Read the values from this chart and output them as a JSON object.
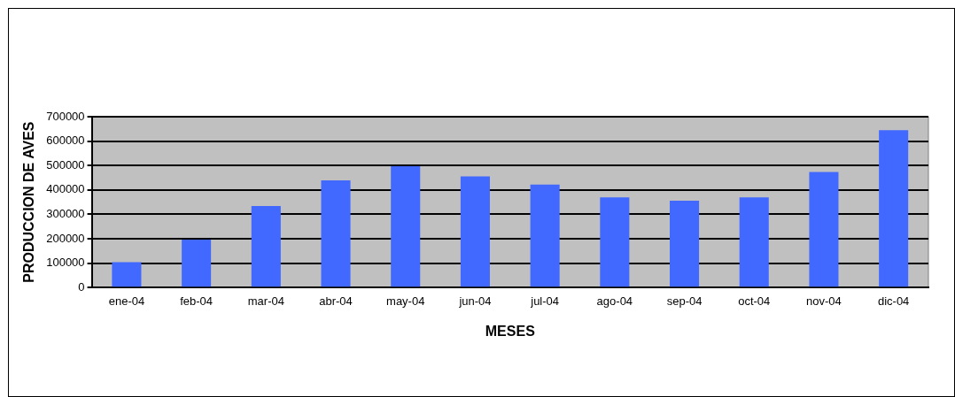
{
  "chart_data": {
    "type": "bar",
    "xlabel": "MESES",
    "ylabel": "PRODUCCION DE AVES",
    "categories": [
      "ene-04",
      "feb-04",
      "mar-04",
      "abr-04",
      "may-04",
      "jun-04",
      "jul-04",
      "ago-04",
      "sep-04",
      "oct-04",
      "nov-04",
      "dic-04"
    ],
    "values": [
      104000,
      196000,
      334000,
      439000,
      497000,
      455000,
      422000,
      369000,
      356000,
      369000,
      474000,
      645000
    ],
    "color": "#4169ff",
    "ylim": [
      0,
      700000
    ],
    "yticks": [
      0,
      100000,
      200000,
      300000,
      400000,
      500000,
      600000,
      700000
    ],
    "grid": "y",
    "legend": false
  }
}
